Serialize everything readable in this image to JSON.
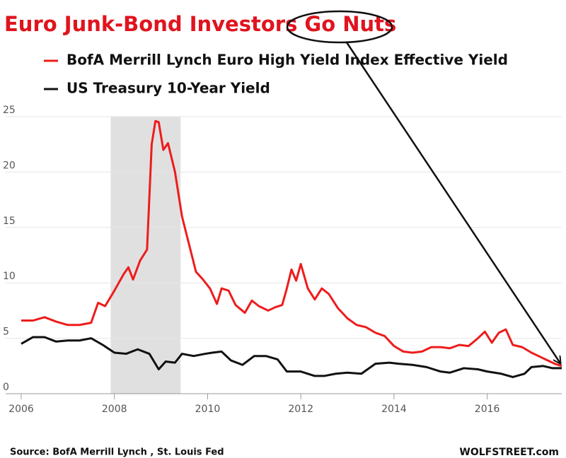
{
  "chart_data": {
    "type": "line",
    "title": "Euro Junk-Bond Investors Go Nuts",
    "source": "Source: BofA Merrill Lynch , St. Louis Fed",
    "credit": "WOLFSTREET.com",
    "xlim": [
      2006,
      2017.6
    ],
    "xticks": [
      2006,
      2008,
      2010,
      2012,
      2014,
      2016
    ],
    "ylim": [
      0,
      25
    ],
    "yticks": [
      0,
      5,
      10,
      15,
      20,
      25
    ],
    "grid": true,
    "shaded_ranges": [
      [
        2007.92,
        2009.42
      ]
    ],
    "shade_color": "#e0e0e0",
    "series": [
      {
        "name": "BofA Merrill Lynch Euro High Yield Index Effective Yield",
        "color": "#ee1c1c",
        "x": [
          2006.0,
          2006.25,
          2006.5,
          2006.75,
          2007.0,
          2007.25,
          2007.5,
          2007.65,
          2007.8,
          2008.0,
          2008.2,
          2008.3,
          2008.4,
          2008.55,
          2008.7,
          2008.8,
          2008.88,
          2008.95,
          2009.05,
          2009.15,
          2009.3,
          2009.45,
          2009.6,
          2009.75,
          2009.9,
          2010.05,
          2010.2,
          2010.3,
          2010.45,
          2010.6,
          2010.8,
          2010.95,
          2011.1,
          2011.3,
          2011.45,
          2011.6,
          2011.7,
          2011.8,
          2011.9,
          2012.0,
          2012.15,
          2012.3,
          2012.45,
          2012.6,
          2012.8,
          2013.0,
          2013.2,
          2013.4,
          2013.6,
          2013.8,
          2014.0,
          2014.2,
          2014.4,
          2014.6,
          2014.8,
          2015.0,
          2015.2,
          2015.4,
          2015.6,
          2015.8,
          2015.95,
          2016.1,
          2016.25,
          2016.4,
          2016.55,
          2016.75,
          2016.95,
          2017.1,
          2017.3,
          2017.45,
          2017.6
        ],
        "values": [
          6.6,
          6.6,
          6.9,
          6.5,
          6.2,
          6.2,
          6.4,
          8.2,
          7.9,
          9.3,
          10.8,
          11.4,
          10.3,
          12.0,
          13.0,
          22.5,
          24.6,
          24.5,
          22.0,
          22.6,
          20.0,
          16.0,
          13.5,
          11.0,
          10.3,
          9.5,
          8.1,
          9.5,
          9.3,
          8.0,
          7.3,
          8.4,
          7.9,
          7.5,
          7.8,
          8.0,
          9.5,
          11.2,
          10.2,
          11.7,
          9.5,
          8.5,
          9.5,
          9.0,
          7.7,
          6.8,
          6.2,
          6.0,
          5.5,
          5.2,
          4.3,
          3.8,
          3.7,
          3.8,
          4.2,
          4.2,
          4.1,
          4.4,
          4.3,
          5.0,
          5.6,
          4.6,
          5.5,
          5.8,
          4.4,
          4.2,
          3.7,
          3.4,
          3.0,
          2.7,
          2.5
        ]
      },
      {
        "name": "US Treasury 10-Year Yield",
        "color": "#111111",
        "x": [
          2006.0,
          2006.25,
          2006.5,
          2006.75,
          2007.0,
          2007.25,
          2007.5,
          2007.75,
          2008.0,
          2008.25,
          2008.5,
          2008.75,
          2008.95,
          2009.1,
          2009.3,
          2009.45,
          2009.7,
          2009.95,
          2010.1,
          2010.3,
          2010.5,
          2010.75,
          2011.0,
          2011.25,
          2011.5,
          2011.7,
          2012.0,
          2012.3,
          2012.5,
          2012.75,
          2013.0,
          2013.3,
          2013.6,
          2013.9,
          2014.1,
          2014.4,
          2014.7,
          2015.0,
          2015.2,
          2015.5,
          2015.8,
          2016.0,
          2016.3,
          2016.55,
          2016.8,
          2016.95,
          2017.2,
          2017.4,
          2017.6
        ],
        "values": [
          4.5,
          5.1,
          5.1,
          4.7,
          4.8,
          4.8,
          5.0,
          4.4,
          3.7,
          3.6,
          4.0,
          3.6,
          2.2,
          2.9,
          2.8,
          3.6,
          3.4,
          3.6,
          3.7,
          3.8,
          3.0,
          2.6,
          3.4,
          3.4,
          3.1,
          2.0,
          2.0,
          1.6,
          1.6,
          1.8,
          1.9,
          1.8,
          2.7,
          2.8,
          2.7,
          2.6,
          2.4,
          2.0,
          1.9,
          2.3,
          2.2,
          2.0,
          1.8,
          1.5,
          1.8,
          2.4,
          2.5,
          2.3,
          2.3
        ]
      }
    ]
  }
}
